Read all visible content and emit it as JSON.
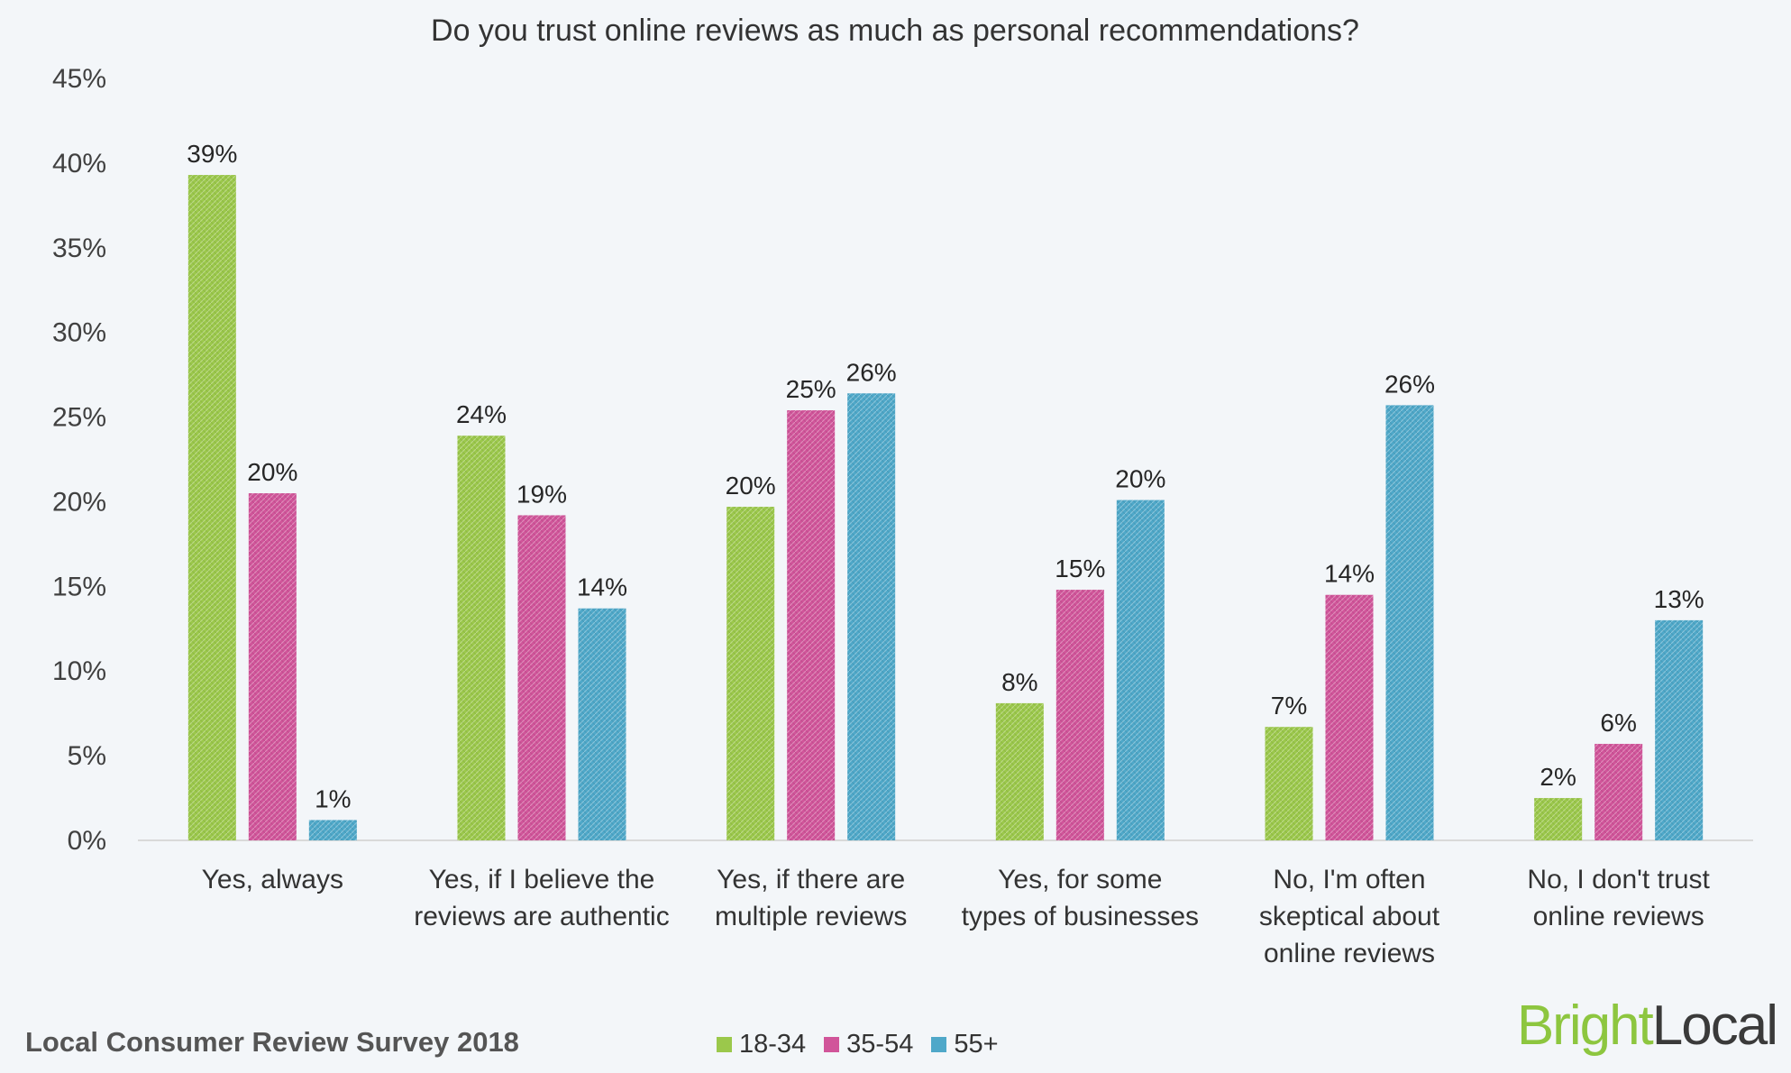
{
  "chart_data": {
    "type": "bar",
    "title": "Do you trust online reviews as much as personal recommendations?",
    "categories": [
      [
        "Yes, always"
      ],
      [
        "Yes, if I believe the",
        "reviews are authentic"
      ],
      [
        "Yes, if there are",
        "multiple reviews"
      ],
      [
        "Yes, for some",
        "types of businesses"
      ],
      [
        "No, I'm often",
        "skeptical about",
        "online reviews"
      ],
      [
        "No, I don't trust",
        "online reviews"
      ]
    ],
    "series": [
      {
        "name": "18-34",
        "color": "#9bc84b",
        "values": [
          39.3,
          23.9,
          19.7,
          8.1,
          6.7,
          2.5
        ],
        "labels": [
          "39%",
          "24%",
          "20%",
          "8%",
          "7%",
          "2%"
        ]
      },
      {
        "name": "35-54",
        "color": "#d1559a",
        "values": [
          20.5,
          19.2,
          25.4,
          14.8,
          14.5,
          5.7
        ],
        "labels": [
          "20%",
          "19%",
          "25%",
          "15%",
          "14%",
          "6%"
        ]
      },
      {
        "name": "55+",
        "color": "#4fa8c9",
        "values": [
          1.2,
          13.7,
          26.4,
          20.1,
          25.7,
          13.0
        ],
        "labels": [
          "1%",
          "14%",
          "26%",
          "20%",
          "26%",
          "13%"
        ]
      }
    ],
    "y_ticks": [
      "0%",
      "5%",
      "10%",
      "15%",
      "20%",
      "25%",
      "30%",
      "35%",
      "40%",
      "45%"
    ],
    "ylim": [
      0,
      45
    ],
    "legend_position": "bottom"
  },
  "footer": {
    "source": "Local Consumer Review Survey 2018"
  },
  "brand": {
    "part1": "Bright",
    "part2": "Local"
  }
}
